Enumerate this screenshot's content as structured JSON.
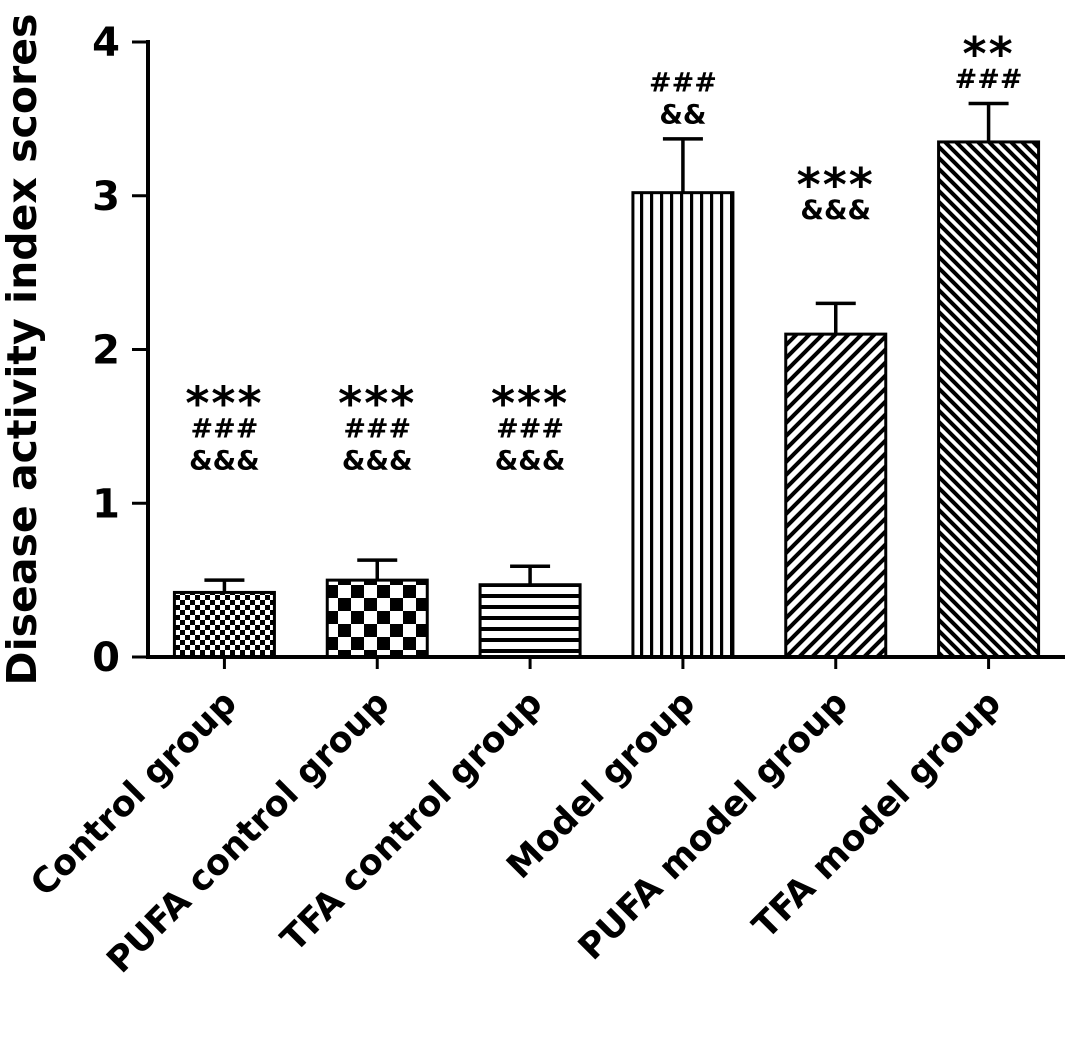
{
  "chart_data": {
    "type": "bar",
    "title": "",
    "xlabel": "",
    "ylabel": "Disease activity index scores",
    "ylim": [
      0,
      4
    ],
    "yticks": [
      0,
      1,
      2,
      3,
      4
    ],
    "grid": false,
    "legend": "none",
    "bar_color": "#000000",
    "background": "#ffffff",
    "categories": [
      "Control group",
      "PUFA control group",
      "TFA control group",
      "Model group",
      "PUFA model group",
      "TFA model group"
    ],
    "values": [
      0.42,
      0.5,
      0.47,
      3.02,
      2.1,
      3.35
    ],
    "errors": [
      0.08,
      0.13,
      0.12,
      0.35,
      0.2,
      0.25
    ],
    "error_bar_style": "upper-only-cap",
    "patterns": [
      "checker-fine",
      "checker-coarse",
      "horizontal-lines",
      "vertical-lines",
      "diagonal-up-lines",
      "diagonal-down-lines"
    ],
    "annotations": [
      {
        "lines": [
          "***",
          "###",
          "&&&"
        ],
        "bottom_value": 1.22
      },
      {
        "lines": [
          "***",
          "###",
          "&&&"
        ],
        "bottom_value": 1.22
      },
      {
        "lines": [
          "***",
          "###",
          "&&&"
        ],
        "bottom_value": 1.22
      },
      {
        "lines": [
          "###",
          "&&"
        ],
        "bottom_value": 3.47
      },
      {
        "lines": [
          "***",
          "&&&"
        ],
        "bottom_value": 2.85
      },
      {
        "lines": [
          "**",
          "###"
        ],
        "bottom_value": 3.7
      }
    ]
  }
}
